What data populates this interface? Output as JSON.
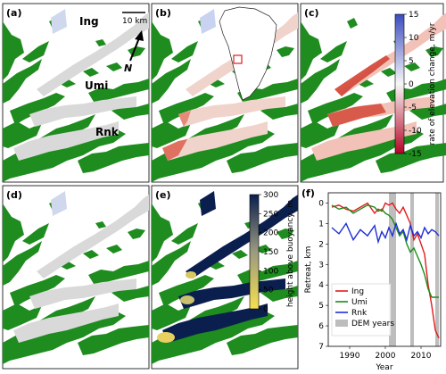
{
  "panels": {
    "a": {
      "letter": "(a)",
      "glacier_labels": [
        "Ing",
        "Umi",
        "Rnk"
      ],
      "scale_bar": "10 km",
      "north": "N"
    },
    "b": {
      "letter": "(b)"
    },
    "c": {
      "letter": "(c)"
    },
    "d": {
      "letter": "(d)"
    },
    "e": {
      "letter": "(e)"
    },
    "f": {
      "letter": "(f)"
    }
  },
  "colorbar_elev": {
    "label": "rate of elevation change, m/yr",
    "ticks": [
      15,
      10,
      5,
      0,
      -5,
      -10,
      -15
    ],
    "range": [
      -15,
      15
    ],
    "colors": [
      "#b40426",
      "#f7f7f7",
      "#3b4cc0"
    ]
  },
  "colorbar_hab": {
    "label": "height above buoyancy, m",
    "ticks": [
      300,
      250,
      200,
      150,
      100,
      50,
      0
    ],
    "range": [
      0,
      300
    ],
    "colors": [
      "#f5e050",
      "#9a9a80",
      "#0b1f4f"
    ]
  },
  "land_color": "#1e8c1e",
  "chart_data": {
    "type": "line",
    "xlabel": "Year",
    "ylabel": "Retreat, km",
    "xlim": [
      1984,
      2015.5
    ],
    "ylim": [
      7,
      -0.5
    ],
    "y_inverted": true,
    "xticks": [
      1990,
      2000,
      2010
    ],
    "yticks": [
      0,
      1,
      2,
      3,
      4,
      5,
      6,
      7
    ],
    "legend_position": "lower-left",
    "dem_years_label": "DEM years",
    "dem_bands": [
      [
        2001,
        2003
      ],
      [
        2007,
        2008
      ],
      [
        2014,
        2015
      ]
    ],
    "series": [
      {
        "name": "Ing",
        "color": "#e31a1c",
        "x": [
          1985,
          1987,
          1989,
          1991,
          1993,
          1995,
          1997,
          1998,
          1999,
          2000,
          2001,
          2002,
          2003,
          2004,
          2005,
          2006,
          2007,
          2008,
          2009,
          2010,
          2011,
          2012,
          2013,
          2014,
          2015
        ],
        "y": [
          0.2,
          0.1,
          0.3,
          0.4,
          0.2,
          0.0,
          0.5,
          0.3,
          0.4,
          0.0,
          0.1,
          0.0,
          0.3,
          0.5,
          0.2,
          0.6,
          1.0,
          1.8,
          1.5,
          2.0,
          2.5,
          4.0,
          5.0,
          6.2,
          6.6
        ]
      },
      {
        "name": "Umi",
        "color": "#1a8c1a",
        "x": [
          1985,
          1987,
          1989,
          1991,
          1993,
          1995,
          1997,
          1998,
          1999,
          2000,
          2001,
          2002,
          2003,
          2004,
          2005,
          2006,
          2007,
          2008,
          2009,
          2010,
          2011,
          2012,
          2013,
          2014,
          2015
        ],
        "y": [
          0.1,
          0.3,
          0.2,
          0.5,
          0.3,
          0.1,
          0.2,
          0.4,
          0.3,
          0.5,
          0.6,
          0.8,
          1.2,
          1.6,
          1.4,
          2.0,
          2.4,
          2.2,
          2.6,
          3.0,
          3.5,
          4.2,
          4.6,
          4.6,
          4.6
        ]
      },
      {
        "name": "Rnk",
        "color": "#1f2fd6",
        "x": [
          1985,
          1987,
          1989,
          1991,
          1993,
          1995,
          1997,
          1998,
          1999,
          2000,
          2001,
          2002,
          2003,
          2004,
          2005,
          2006,
          2007,
          2008,
          2009,
          2010,
          2011,
          2012,
          2013,
          2014,
          2015
        ],
        "y": [
          1.2,
          1.5,
          1.0,
          1.8,
          1.3,
          1.6,
          1.1,
          1.9,
          1.4,
          1.7,
          1.2,
          1.6,
          1.0,
          1.5,
          1.3,
          1.8,
          1.1,
          1.6,
          1.4,
          1.7,
          1.2,
          1.5,
          1.3,
          1.4,
          1.6
        ]
      }
    ]
  }
}
